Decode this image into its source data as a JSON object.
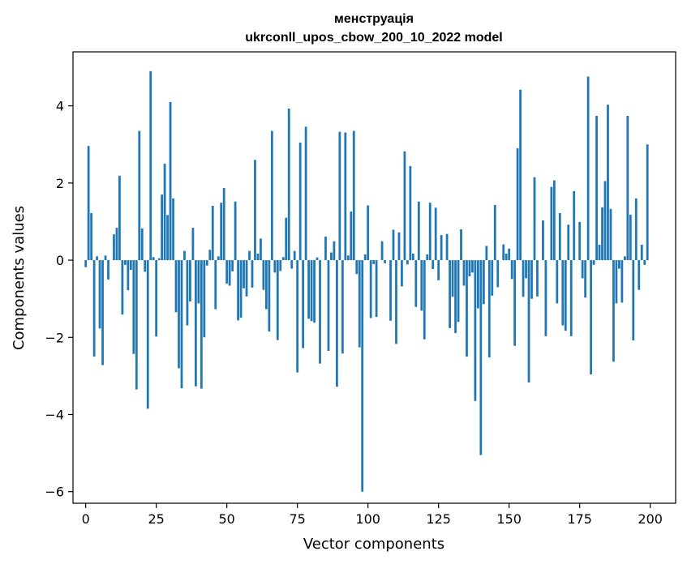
{
  "chart_data": {
    "type": "bar",
    "title": "менструація",
    "subtitle": "ukrconll_upos_cbow_200_10_2022 model",
    "xlabel": "Vector components",
    "ylabel": "Components values",
    "xlim": [
      -4.5,
      209
    ],
    "ylim": [
      -6.3,
      5.4
    ],
    "xticks": [
      0,
      25,
      50,
      75,
      100,
      125,
      150,
      175,
      200
    ],
    "yticks": [
      -6,
      -4,
      -2,
      0,
      2,
      4
    ],
    "xtick_labels": [
      "0",
      "25",
      "50",
      "75",
      "100",
      "125",
      "150",
      "175",
      "200"
    ],
    "ytick_labels": [
      "−6",
      "−4",
      "−2",
      "0",
      "2",
      "4"
    ],
    "grid": false,
    "bar_color": "#1f77b4",
    "values": [
      -0.18,
      2.96,
      1.22,
      -2.5,
      0.1,
      -1.77,
      -2.72,
      0.12,
      -0.5,
      0.0,
      0.67,
      0.84,
      2.19,
      -1.41,
      -0.12,
      -0.78,
      -0.25,
      -2.43,
      -3.35,
      3.35,
      0.82,
      -0.3,
      -3.85,
      4.9,
      0.08,
      -1.98,
      0.05,
      1.7,
      2.5,
      1.17,
      4.1,
      1.6,
      -1.35,
      -2.8,
      -3.32,
      0.24,
      -1.69,
      -1.07,
      0.84,
      -3.27,
      -1.12,
      -3.33,
      -2.0,
      -0.14,
      0.27,
      1.41,
      -1.27,
      0.1,
      1.49,
      1.87,
      -0.61,
      -0.66,
      -0.29,
      1.52,
      -1.56,
      -1.49,
      -0.73,
      -0.94,
      0.24,
      -0.71,
      2.6,
      0.17,
      0.56,
      -0.77,
      -1.27,
      -1.85,
      3.35,
      -0.32,
      -2.07,
      -0.28,
      0.08,
      1.1,
      3.93,
      -0.22,
      0.24,
      -2.91,
      3.05,
      -2.28,
      3.46,
      -1.52,
      -1.58,
      -1.62,
      0.07,
      -2.68,
      0.0,
      0.61,
      -2.35,
      0.2,
      0.49,
      -3.28,
      3.33,
      -2.42,
      3.31,
      0.12,
      1.26,
      3.35,
      -0.36,
      -2.26,
      -6.0,
      0.15,
      1.42,
      -1.5,
      -0.1,
      -1.47,
      0.0,
      0.49,
      -0.08,
      0.0,
      -1.57,
      0.79,
      -2.17,
      0.72,
      -0.68,
      2.82,
      -0.11,
      2.44,
      0.17,
      -1.21,
      1.52,
      -1.31,
      -2.05,
      0.15,
      1.49,
      -0.23,
      1.36,
      -0.52,
      0.65,
      0.0,
      0.68,
      -1.76,
      -0.95,
      -1.89,
      -1.6,
      0.8,
      -0.66,
      -2.5,
      -0.42,
      -0.32,
      -3.65,
      -1.25,
      -5.05,
      -1.14,
      0.37,
      -2.52,
      -0.92,
      1.43,
      -0.7,
      0.0,
      0.41,
      0.17,
      0.3,
      -0.49,
      -2.22,
      2.9,
      4.42,
      -0.95,
      -0.47,
      -3.17,
      -1.0,
      2.15,
      -0.94,
      0.0,
      1.03,
      -1.97,
      0.0,
      1.9,
      2.07,
      -1.12,
      1.22,
      -1.69,
      -1.83,
      0.92,
      -1.97,
      1.79,
      0.0,
      0.99,
      -0.47,
      -0.97,
      4.76,
      -2.96,
      -0.12,
      3.74,
      0.4,
      1.37,
      2.05,
      4.03,
      1.33,
      -2.63,
      -1.12,
      -0.22,
      -1.1,
      0.1,
      3.74,
      1.18,
      -2.08,
      1.6,
      -0.77,
      0.4,
      -0.12,
      3.0
    ]
  }
}
